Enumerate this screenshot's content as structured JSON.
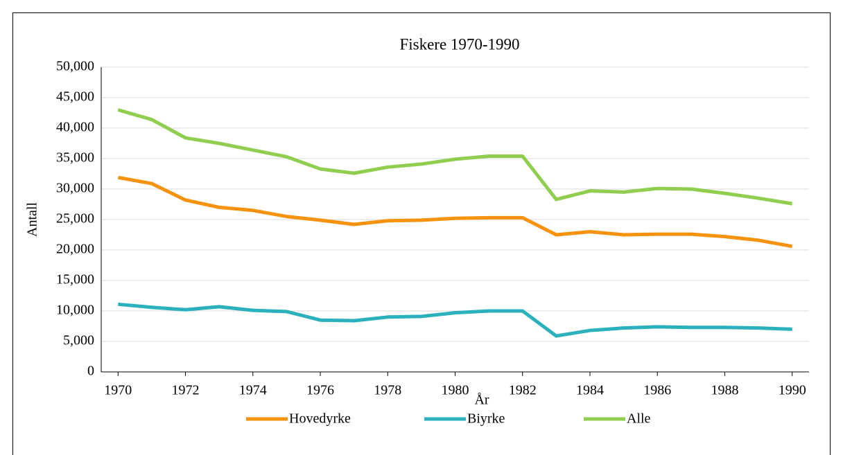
{
  "chart_data": {
    "type": "line",
    "title": "Fiskere 1970-1990",
    "x_label": "År",
    "y_label": "Antall",
    "x": [
      1970,
      1971,
      1972,
      1973,
      1974,
      1975,
      1976,
      1977,
      1978,
      1979,
      1980,
      1981,
      1982,
      1983,
      1984,
      1985,
      1986,
      1987,
      1988,
      1989,
      1990
    ],
    "xlim": [
      1969.5,
      1990.5
    ],
    "xticks": [
      1970,
      1972,
      1974,
      1976,
      1978,
      1980,
      1982,
      1984,
      1986,
      1988,
      1990
    ],
    "ylim": [
      0,
      50000
    ],
    "yticks": [
      0,
      {
        "value": 5000,
        "label": "5,000"
      },
      {
        "value": 10000,
        "label": "10,000"
      },
      {
        "value": 15000,
        "label": "15,000"
      },
      {
        "value": 20000,
        "label": "20,000"
      },
      {
        "value": 25000,
        "label": "25,000"
      },
      {
        "value": 30000,
        "label": "30,000"
      },
      {
        "value": 35000,
        "label": "35,000"
      },
      {
        "value": 40000,
        "label": "40,000"
      },
      {
        "value": 45000,
        "label": "45,000"
      },
      {
        "value": 50000,
        "label": "50,000"
      }
    ],
    "grid": true,
    "legend": "bottom",
    "series": [
      {
        "name": "Hovedyrke",
        "color": "#f7920f",
        "values": [
          31900,
          30900,
          28200,
          27000,
          26500,
          25500,
          24900,
          24200,
          24800,
          24900,
          25200,
          25300,
          25300,
          22500,
          23000,
          22500,
          22600,
          22600,
          22200,
          21600,
          20600
        ]
      },
      {
        "name": "Biyrke",
        "color": "#2bb1bb",
        "values": [
          11100,
          10600,
          10200,
          10700,
          10100,
          9900,
          8500,
          8400,
          9000,
          9100,
          9700,
          10000,
          10000,
          5900,
          6800,
          7200,
          7400,
          7300,
          7300,
          7200,
          7000
        ]
      },
      {
        "name": "Alle",
        "color": "#8fce4f",
        "values": [
          43000,
          41400,
          38400,
          37500,
          36400,
          35300,
          33300,
          32600,
          33600,
          34100,
          34900,
          35400,
          35400,
          28300,
          29700,
          29500,
          30100,
          30000,
          29300,
          28500,
          27600
        ]
      }
    ]
  }
}
